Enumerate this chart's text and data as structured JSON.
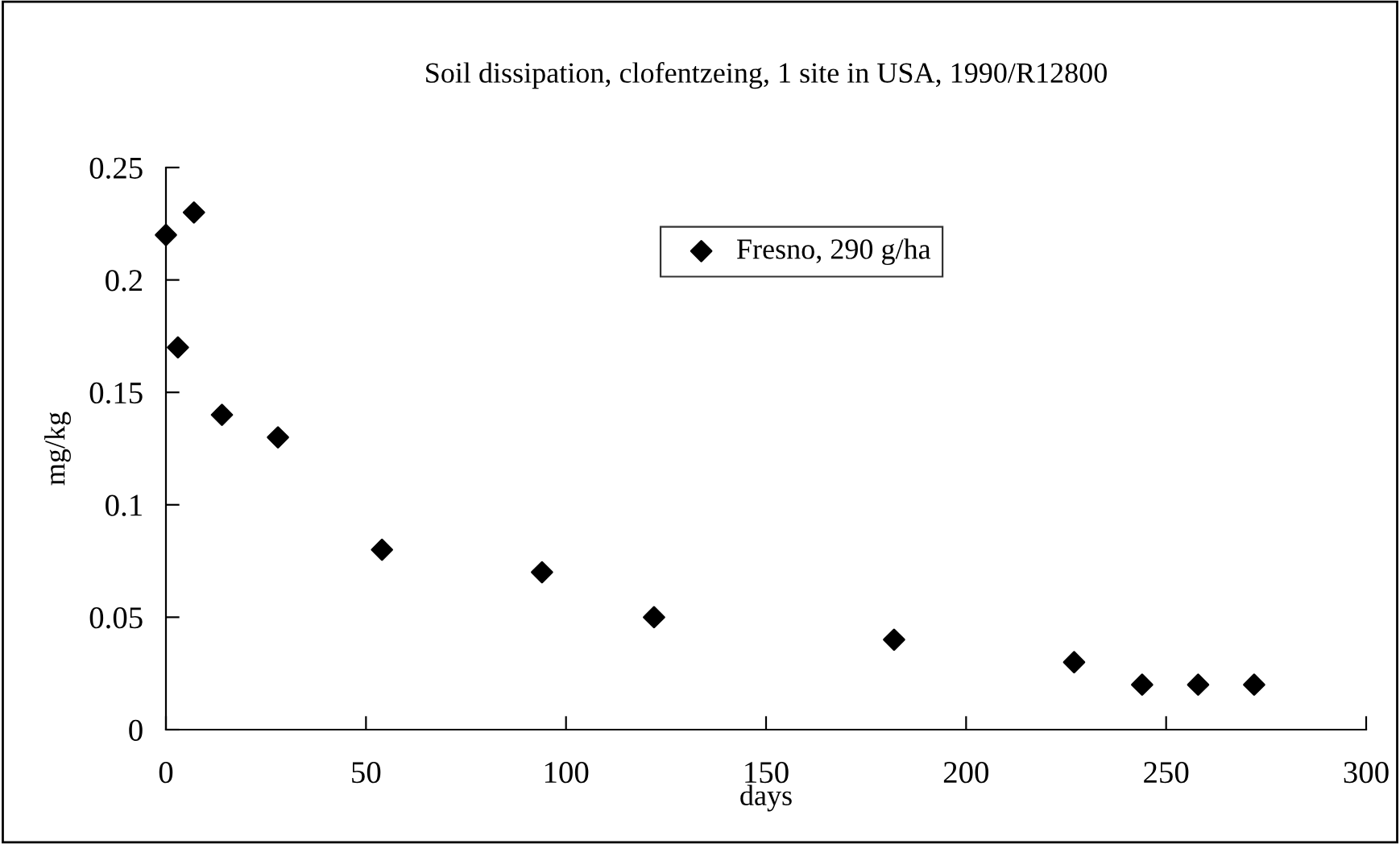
{
  "chart_data": {
    "type": "scatter",
    "title": "Soil dissipation, clofentzeing, 1 site in USA, 1990/R12800",
    "xlabel": "days",
    "ylabel": "mg/kg",
    "series": [
      {
        "name": "Fresno, 290 g/ha",
        "color": "#000000",
        "x": [
          0,
          3,
          7,
          14,
          28,
          54,
          94,
          122,
          182,
          227,
          244,
          258,
          272
        ],
        "values": [
          0.22,
          0.17,
          0.23,
          0.14,
          0.13,
          0.08,
          0.07,
          0.05,
          0.04,
          0.03,
          0.02,
          0.02,
          0.02
        ]
      }
    ],
    "xlim": [
      0,
      300
    ],
    "xticks": [
      0,
      50,
      100,
      150,
      200,
      250,
      300
    ],
    "ylim": [
      0,
      0.25
    ],
    "yticks": [
      0,
      0.05,
      0.1,
      0.15,
      0.2,
      0.25
    ],
    "marker": "diamond",
    "legend": "top",
    "grid": false
  }
}
